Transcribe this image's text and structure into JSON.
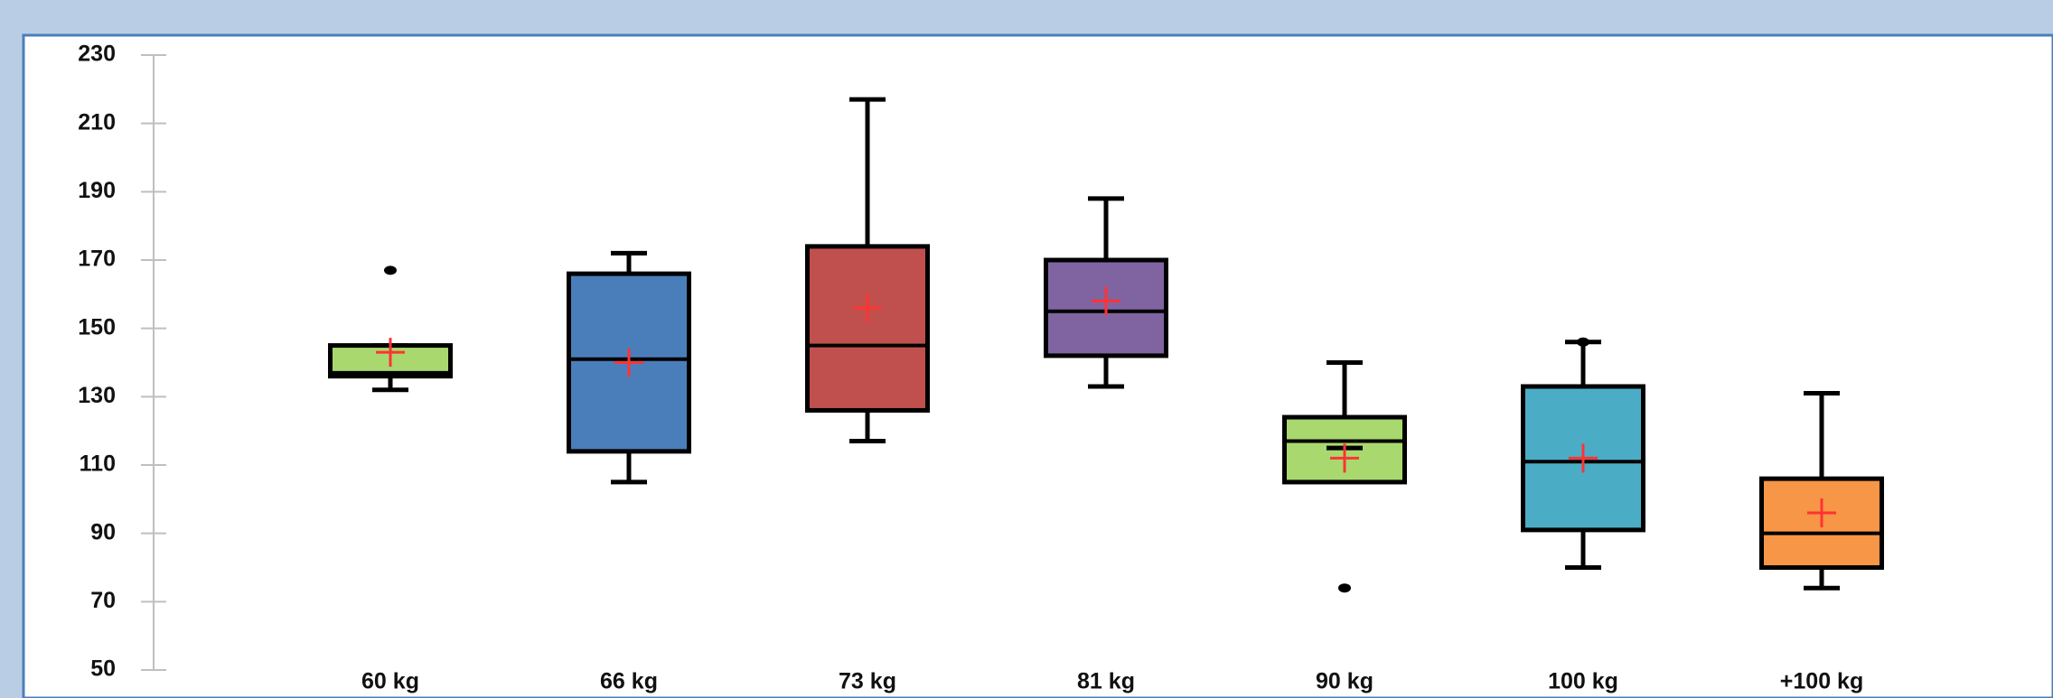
{
  "chart_data": {
    "type": "box",
    "categories": [
      "60 kg",
      "66 kg",
      "73 kg",
      "81 kg",
      "90 kg",
      "100 kg",
      "+100 kg"
    ],
    "colors": [
      "#a9d86e",
      "#4a7ebb",
      "#c0504d",
      "#8064a2",
      "#a9d86e",
      "#4bacc6",
      "#f79646"
    ],
    "whisker_low": [
      132,
      105,
      117,
      133,
      115,
      80,
      74
    ],
    "q1": [
      136,
      114,
      126,
      142,
      105,
      91,
      80
    ],
    "median": [
      137,
      141,
      145,
      155,
      117,
      111,
      90
    ],
    "q3": [
      145,
      166,
      174,
      170,
      124,
      133,
      106
    ],
    "whisker_high": [
      145,
      172,
      217,
      188,
      140,
      146,
      131
    ],
    "mean": [
      143,
      140,
      156,
      158,
      112,
      112,
      96
    ],
    "outliers": [
      [
        167
      ],
      [],
      [],
      [],
      [
        74
      ],
      [
        146
      ],
      []
    ],
    "mean_color": "#ff3333",
    "ylim": [
      50,
      230
    ],
    "yticks": [
      50,
      70,
      90,
      110,
      130,
      150,
      170,
      190,
      210,
      230
    ]
  }
}
